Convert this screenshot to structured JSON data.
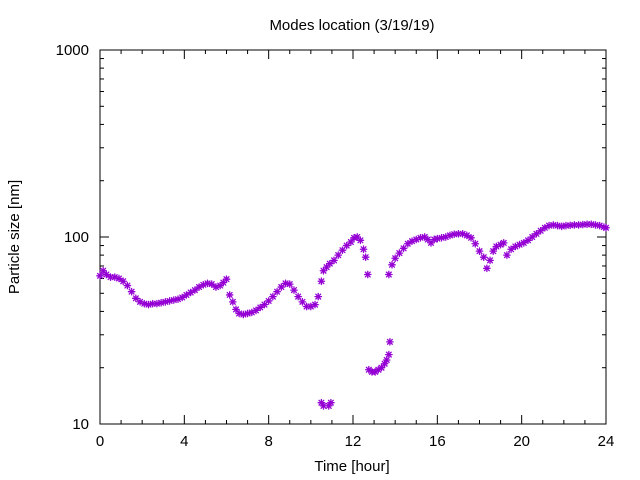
{
  "chart_data": {
    "type": "scatter",
    "title": "Modes location (3/19/19)",
    "xlabel": "Time [hour]",
    "ylabel": "Particle size [nm]",
    "xlim": [
      0,
      24
    ],
    "ylim": [
      10,
      1000
    ],
    "yscale": "log",
    "xticks": [
      0,
      4,
      8,
      12,
      16,
      20,
      24
    ],
    "xtick_labels": [
      "0",
      "4",
      "8",
      "12",
      "16",
      "20",
      "24"
    ],
    "yticks": [
      10,
      100,
      1000
    ],
    "ytick_labels": [
      "10",
      "100",
      "1000"
    ],
    "grid": false,
    "legend": "none",
    "marker": "asterisk",
    "series": [
      {
        "color": "#9400d3",
        "points": [
          [
            0.0,
            62
          ],
          [
            0.15,
            66
          ],
          [
            0.3,
            63
          ],
          [
            0.5,
            61
          ],
          [
            0.7,
            61
          ],
          [
            0.9,
            60
          ],
          [
            1.1,
            58
          ],
          [
            1.3,
            55
          ],
          [
            1.5,
            51
          ],
          [
            1.7,
            47
          ],
          [
            1.9,
            45
          ],
          [
            2.1,
            44
          ],
          [
            2.3,
            43.5
          ],
          [
            2.5,
            44
          ],
          [
            2.7,
            44
          ],
          [
            2.9,
            44.5
          ],
          [
            3.1,
            45
          ],
          [
            3.3,
            45.5
          ],
          [
            3.5,
            46
          ],
          [
            3.7,
            46.5
          ],
          [
            3.9,
            47.5
          ],
          [
            4.1,
            49
          ],
          [
            4.3,
            50.5
          ],
          [
            4.5,
            52
          ],
          [
            4.7,
            54
          ],
          [
            4.9,
            55.5
          ],
          [
            5.1,
            56.5
          ],
          [
            5.3,
            56
          ],
          [
            5.5,
            54
          ],
          [
            5.7,
            55
          ],
          [
            5.85,
            57
          ],
          [
            6.0,
            59.5
          ],
          [
            6.15,
            49
          ],
          [
            6.3,
            45
          ],
          [
            6.45,
            41
          ],
          [
            6.6,
            39
          ],
          [
            6.8,
            38.5
          ],
          [
            7.0,
            39
          ],
          [
            7.2,
            39.5
          ],
          [
            7.4,
            40.5
          ],
          [
            7.6,
            42
          ],
          [
            7.8,
            43.5
          ],
          [
            8.0,
            45.5
          ],
          [
            8.2,
            48
          ],
          [
            8.4,
            51
          ],
          [
            8.6,
            54
          ],
          [
            8.8,
            56.5
          ],
          [
            9.0,
            56
          ],
          [
            9.2,
            52
          ],
          [
            9.4,
            48
          ],
          [
            9.6,
            45
          ],
          [
            9.8,
            42.5
          ],
          [
            10.0,
            42.5
          ],
          [
            10.2,
            43.5
          ],
          [
            10.35,
            48
          ],
          [
            10.5,
            58
          ],
          [
            10.6,
            66
          ],
          [
            10.75,
            69
          ],
          [
            10.9,
            72
          ],
          [
            11.1,
            75
          ],
          [
            11.3,
            80
          ],
          [
            11.5,
            85
          ],
          [
            11.7,
            90
          ],
          [
            11.9,
            94
          ],
          [
            12.05,
            99
          ],
          [
            12.2,
            100
          ],
          [
            12.35,
            96
          ],
          [
            12.5,
            86
          ],
          [
            12.6,
            78
          ],
          [
            12.7,
            63
          ],
          [
            10.5,
            13
          ],
          [
            10.6,
            12.5
          ],
          [
            10.85,
            12.5
          ],
          [
            10.95,
            13
          ],
          [
            12.75,
            19.5
          ],
          [
            12.9,
            19
          ],
          [
            13.05,
            19
          ],
          [
            13.2,
            19.5
          ],
          [
            13.35,
            20
          ],
          [
            13.5,
            21
          ],
          [
            13.6,
            22
          ],
          [
            13.7,
            23.5
          ],
          [
            13.75,
            27.5
          ],
          [
            13.7,
            63
          ],
          [
            13.85,
            71
          ],
          [
            14.0,
            77
          ],
          [
            14.2,
            82
          ],
          [
            14.4,
            87
          ],
          [
            14.6,
            92
          ],
          [
            14.8,
            95
          ],
          [
            15.0,
            97
          ],
          [
            15.2,
            99
          ],
          [
            15.4,
            100
          ],
          [
            15.55,
            97
          ],
          [
            15.7,
            93
          ],
          [
            15.85,
            97
          ],
          [
            16.0,
            98
          ],
          [
            16.2,
            99
          ],
          [
            16.4,
            100
          ],
          [
            16.6,
            102
          ],
          [
            16.8,
            103.5
          ],
          [
            17.0,
            104
          ],
          [
            17.2,
            104
          ],
          [
            17.4,
            102
          ],
          [
            17.6,
            99
          ],
          [
            17.8,
            92
          ],
          [
            18.0,
            84
          ],
          [
            18.2,
            78
          ],
          [
            18.35,
            68
          ],
          [
            18.5,
            75
          ],
          [
            18.65,
            84
          ],
          [
            18.8,
            89
          ],
          [
            19.0,
            91
          ],
          [
            19.15,
            93
          ],
          [
            19.3,
            80
          ],
          [
            19.5,
            86
          ],
          [
            19.7,
            89
          ],
          [
            19.9,
            91
          ],
          [
            20.1,
            93
          ],
          [
            20.3,
            96
          ],
          [
            20.5,
            100
          ],
          [
            20.7,
            104
          ],
          [
            20.9,
            108
          ],
          [
            21.1,
            112
          ],
          [
            21.3,
            115
          ],
          [
            21.5,
            116
          ],
          [
            21.7,
            115
          ],
          [
            21.9,
            114
          ],
          [
            22.1,
            115
          ],
          [
            22.3,
            115.5
          ],
          [
            22.5,
            116
          ],
          [
            22.7,
            116
          ],
          [
            22.9,
            116.5
          ],
          [
            23.1,
            117
          ],
          [
            23.3,
            117
          ],
          [
            23.5,
            116
          ],
          [
            23.7,
            115
          ],
          [
            23.9,
            113
          ],
          [
            24.0,
            112
          ]
        ]
      }
    ]
  }
}
